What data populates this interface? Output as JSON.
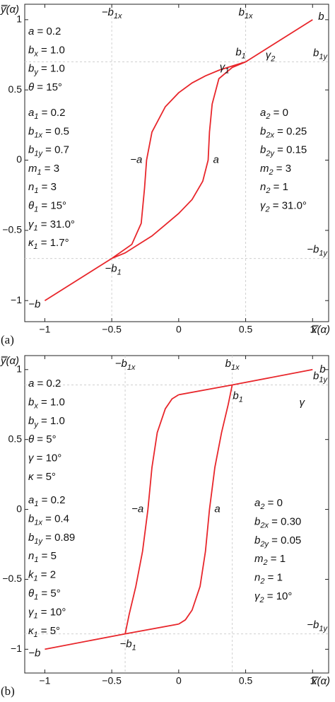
{
  "chart_data": [
    {
      "type": "line",
      "panel_label": "(a)",
      "x_label": "x̿(α)",
      "y_label": "y̿(α)",
      "xlim": [
        -1.15,
        1.12
      ],
      "ylim": [
        -1.15,
        1.11
      ],
      "xticks": [
        {
          "value": -1,
          "label": "−1"
        },
        {
          "value": -0.5,
          "label": "−0.5"
        },
        0,
        0.5,
        1
      ],
      "yticks": [
        {
          "value": -1,
          "label": "−1"
        },
        {
          "value": -0.5,
          "label": "−0.5"
        },
        0,
        0.5,
        1
      ],
      "series": [
        {
          "color": "#e8262b",
          "x": [
            -1,
            -0.5
          ],
          "values": [
            -1,
            -0.7
          ]
        },
        {
          "color": "#e8262b",
          "x": [
            0.5,
            1
          ],
          "values": [
            0.7,
            1
          ]
        },
        {
          "color": "#e8262b",
          "x": [
            -0.5,
            -0.35,
            -0.28,
            -0.255,
            -0.24,
            -0.2,
            -0.1,
            0,
            0.1,
            0.2,
            0.3,
            0.4,
            0.5
          ],
          "values": [
            -0.7,
            -0.6,
            -0.45,
            -0.2,
            0,
            0.2,
            0.38,
            0.48,
            0.55,
            0.6,
            0.64,
            0.67,
            0.7
          ]
        },
        {
          "color": "#e8262b",
          "x": [
            -0.5,
            -0.4,
            -0.3,
            -0.2,
            -0.1,
            0,
            0.1,
            0.18,
            0.22,
            0.23,
            0.25,
            0.3,
            0.4,
            0.5
          ],
          "values": [
            -0.7,
            -0.66,
            -0.6,
            -0.54,
            -0.46,
            -0.38,
            -0.28,
            -0.15,
            0,
            0.2,
            0.4,
            0.58,
            0.66,
            0.7
          ]
        }
      ],
      "guides": [
        {
          "axis": "x",
          "value": -0.5,
          "label": {
            "t": "−b",
            "s": "1x"
          }
        },
        {
          "axis": "x",
          "value": 0.5,
          "label": {
            "t": "b",
            "s": "1x"
          }
        },
        {
          "axis": "y",
          "value": 0.7,
          "label": {
            "t": "b",
            "s": "1y"
          }
        },
        {
          "axis": "y",
          "value": -0.7,
          "label": {
            "t": "−b",
            "s": "1y"
          }
        }
      ],
      "points": [
        {
          "label": {
            "t": "b"
          },
          "x": 1,
          "y": 1
        },
        {
          "label": {
            "t": "−b"
          },
          "x": -1,
          "y": -1
        },
        {
          "label": {
            "t": "b",
            "s": "1"
          },
          "x": 0.5,
          "y": 0.7
        },
        {
          "label": {
            "t": "−b",
            "s": "1"
          },
          "x": -0.5,
          "y": -0.7
        },
        {
          "label": {
            "t": "a"
          },
          "x": 0.22,
          "y": 0
        },
        {
          "label": {
            "t": "−a"
          },
          "x": -0.24,
          "y": 0
        },
        {
          "label": {
            "t": "γ",
            "s": "1"
          },
          "x": 0.5,
          "y": 0.7
        },
        {
          "label": {
            "t": "γ",
            "s": "2"
          },
          "x": 0.5,
          "y": 0.7
        }
      ],
      "params": {
        "left": [
          [
            {
              "t": "a",
              "r": " = 0.2"
            },
            {
              "t": "b",
              "s": "x",
              "r": " = 1.0"
            },
            {
              "t": "b",
              "s": "y",
              "r": " = 1.0"
            },
            {
              "t": "θ",
              "r": " = 15°"
            }
          ],
          [
            {
              "t": "a",
              "s": "1",
              "r": " = 0.2"
            },
            {
              "t": "b",
              "s": "1x",
              "r": " = 0.5"
            },
            {
              "t": "b",
              "s": "1y",
              "r": " = 0.7"
            },
            {
              "t": "m",
              "s": "1",
              "r": " = 3"
            },
            {
              "t": "n",
              "s": "1",
              "r": " = 3"
            },
            {
              "t": "θ",
              "s": "1",
              "r": " = 15°"
            },
            {
              "t": "γ",
              "s": "1",
              "r": " = 31.0°"
            },
            {
              "t": "κ",
              "s": "1",
              "r": " = 1.7°"
            }
          ]
        ],
        "right": [
          {
            "t": "a",
            "s": "2",
            "r": " = 0"
          },
          {
            "t": "b",
            "s": "2x",
            "r": " = 0.25"
          },
          {
            "t": "b",
            "s": "2y",
            "r": " = 0.15"
          },
          {
            "t": "m",
            "s": "2",
            "r": " = 3"
          },
          {
            "t": "n",
            "s": "2",
            "r": " = 1"
          },
          {
            "t": "γ",
            "s": "2",
            "r": " = 31.0°"
          }
        ]
      }
    },
    {
      "type": "line",
      "panel_label": "(b)",
      "x_label": "x̿(α)",
      "y_label": "y̿(α)",
      "xlim": [
        -1.15,
        1.12
      ],
      "ylim": [
        -1.17,
        1.1
      ],
      "xticks": [
        {
          "value": -1,
          "label": "−1"
        },
        {
          "value": -0.5,
          "label": "−0.5"
        },
        0,
        0.5,
        1
      ],
      "yticks": [
        {
          "value": -1,
          "label": "−1"
        },
        {
          "value": -0.5,
          "label": "−0.5"
        },
        0,
        0.5,
        1
      ],
      "series": [
        {
          "color": "#e8262b",
          "x": [
            -1,
            -0.4,
            0
          ],
          "values": [
            -1,
            -0.89,
            -0.82
          ]
        },
        {
          "color": "#e8262b",
          "x": [
            0,
            0.4,
            1
          ],
          "values": [
            0.82,
            0.89,
            1
          ]
        },
        {
          "color": "#e8262b",
          "x": [
            -0.4,
            -0.37,
            -0.32,
            -0.27,
            -0.23,
            -0.2,
            -0.16,
            -0.1,
            -0.05,
            0
          ],
          "values": [
            -0.89,
            -0.75,
            -0.55,
            -0.3,
            0,
            0.3,
            0.55,
            0.72,
            0.79,
            0.82
          ]
        },
        {
          "color": "#e8262b",
          "x": [
            0,
            0.05,
            0.1,
            0.16,
            0.2,
            0.23,
            0.27,
            0.32,
            0.37,
            0.4
          ],
          "values": [
            -0.82,
            -0.79,
            -0.72,
            -0.55,
            -0.3,
            0,
            0.3,
            0.55,
            0.75,
            0.89
          ]
        }
      ],
      "guides": [
        {
          "axis": "x",
          "value": -0.4,
          "label": {
            "t": "−b",
            "s": "1x"
          }
        },
        {
          "axis": "x",
          "value": 0.4,
          "label": {
            "t": "b",
            "s": "1x"
          }
        },
        {
          "axis": "y",
          "value": 0.89,
          "label": {
            "t": "b",
            "s": "1y"
          }
        },
        {
          "axis": "y",
          "value": -0.89,
          "label": {
            "t": "−b",
            "s": "1y"
          }
        }
      ],
      "points": [
        {
          "label": {
            "t": "b"
          },
          "x": 1,
          "y": 1
        },
        {
          "label": {
            "t": "−b"
          },
          "x": -1,
          "y": -1
        },
        {
          "label": {
            "t": "b",
            "s": "1"
          },
          "x": 0.4,
          "y": 0.89
        },
        {
          "label": {
            "t": "−b",
            "s": "1"
          },
          "x": -0.4,
          "y": -0.89
        },
        {
          "label": {
            "t": "a"
          },
          "x": 0.23,
          "y": 0
        },
        {
          "label": {
            "t": "−a"
          },
          "x": -0.23,
          "y": 0
        },
        {
          "label": {
            "t": "γ"
          },
          "x": 1,
          "y": 1
        }
      ],
      "params": {
        "left": [
          [
            {
              "t": "a",
              "r": " = 0.2"
            },
            {
              "t": "b",
              "s": "x",
              "r": " = 1.0"
            },
            {
              "t": "b",
              "s": "y",
              "r": " = 1.0"
            },
            {
              "t": "θ",
              "r": " = 5°"
            },
            {
              "t": "γ",
              "r": " = 10°"
            },
            {
              "t": "κ",
              "r": " = 5°"
            }
          ],
          [
            {
              "t": "a",
              "s": "1",
              "r": " = 0.2"
            },
            {
              "t": "b",
              "s": "1x",
              "r": " = 0.4"
            },
            {
              "t": "b",
              "s": "1y",
              "r": " = 0.89"
            },
            {
              "t": "n",
              "s": "1",
              "r": " = 5"
            },
            {
              "t": "k",
              "s": "1",
              "r": " = 2"
            },
            {
              "t": "θ",
              "s": "1",
              "r": " = 5°"
            },
            {
              "t": "γ",
              "s": "1",
              "r": " = 10°"
            },
            {
              "t": "κ",
              "s": "1",
              "r": " = 5°"
            }
          ]
        ],
        "right": [
          {
            "t": "a",
            "s": "2",
            "r": " = 0"
          },
          {
            "t": "b",
            "s": "2x",
            "r": " = 0.30"
          },
          {
            "t": "b",
            "s": "2y",
            "r": " = 0.05"
          },
          {
            "t": "m",
            "s": "2",
            "r": " = 1"
          },
          {
            "t": "n",
            "s": "2",
            "r": " = 1"
          },
          {
            "t": "γ",
            "s": "2",
            "r": " = 10°"
          }
        ]
      }
    }
  ]
}
